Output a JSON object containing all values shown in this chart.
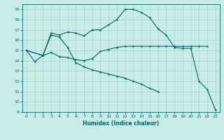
{
  "xlabel": "Humidex (Indice chaleur)",
  "xlim": [
    -0.5,
    23.5
  ],
  "ylim": [
    9,
    19.5
  ],
  "yticks": [
    9,
    10,
    11,
    12,
    13,
    14,
    15,
    16,
    17,
    18,
    19
  ],
  "xticks": [
    0,
    1,
    2,
    3,
    4,
    5,
    6,
    7,
    8,
    9,
    10,
    11,
    12,
    13,
    14,
    15,
    16,
    17,
    18,
    19,
    20,
    21,
    22,
    23
  ],
  "bg_color": "#c8ece8",
  "line_color": "#006666",
  "grid_color": "#aad4cc",
  "line1_x": [
    0,
    1,
    2,
    3,
    4,
    5,
    6,
    7,
    8,
    9,
    10,
    11,
    12,
    13,
    14,
    15,
    16,
    17,
    18,
    19,
    20,
    21,
    22
  ],
  "line1_y": [
    15.0,
    13.9,
    14.5,
    14.8,
    14.4,
    14.3,
    14.1,
    14.0,
    14.2,
    14.9,
    15.1,
    15.3,
    15.4,
    15.4,
    15.4,
    15.4,
    15.4,
    15.4,
    15.4,
    15.4,
    15.4,
    15.4,
    15.4
  ],
  "line2_x": [
    0,
    2,
    3,
    4,
    5,
    6,
    7,
    8,
    9,
    10,
    11,
    12,
    13,
    14,
    15,
    16,
    17,
    18,
    19,
    20,
    21,
    22,
    23
  ],
  "line2_y": [
    15.0,
    14.5,
    16.7,
    16.5,
    16.8,
    16.7,
    16.4,
    17.0,
    17.0,
    17.5,
    18.0,
    19.0,
    19.0,
    18.7,
    18.2,
    17.1,
    16.5,
    15.3,
    15.2,
    15.2,
    12.0,
    11.2,
    9.2
  ],
  "line3_x": [
    0,
    2,
    3,
    4,
    5,
    6,
    7,
    8,
    9,
    10,
    11,
    12,
    13,
    14,
    15,
    16
  ],
  "line3_y": [
    15.0,
    14.5,
    16.5,
    16.3,
    15.3,
    13.8,
    13.4,
    13.1,
    12.9,
    12.7,
    12.5,
    12.3,
    12.0,
    11.7,
    11.3,
    11.0
  ]
}
